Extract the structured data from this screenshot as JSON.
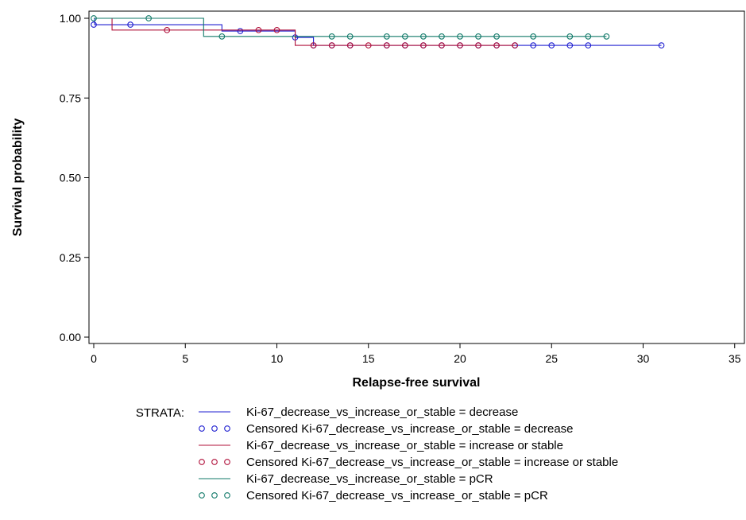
{
  "chart_data": {
    "type": "line",
    "subtype": "kaplan-meier step",
    "title": "",
    "xlabel": "Relapse-free survival",
    "ylabel": "Survival probability",
    "xlim": [
      0,
      35
    ],
    "ylim": [
      0,
      1
    ],
    "xticks": [
      0,
      5,
      10,
      15,
      20,
      25,
      30,
      35
    ],
    "yticks": [
      "0.00",
      "0.25",
      "0.50",
      "0.75",
      "1.00"
    ],
    "grid": false,
    "legend_position": "bottom",
    "legend_heading": "STRATA:",
    "series": [
      {
        "name": "Ki-67_decrease_vs_increase_or_stable = decrease",
        "censored_name": "Censored Ki-67_decrease_vs_increase_or_stable = decrease",
        "color": "#1f1fd0",
        "steps": [
          [
            0,
            1.0
          ],
          [
            0.05,
            0.98
          ],
          [
            7,
            0.96
          ],
          [
            11,
            0.94
          ],
          [
            12,
            0.915
          ],
          [
            31,
            0.915
          ]
        ],
        "censored": [
          [
            0,
            0.98
          ],
          [
            2,
            0.98
          ],
          [
            8,
            0.96
          ],
          [
            11,
            0.94
          ],
          [
            12,
            0.915
          ],
          [
            13,
            0.915
          ],
          [
            14,
            0.915
          ],
          [
            16,
            0.915
          ],
          [
            17,
            0.915
          ],
          [
            18,
            0.915
          ],
          [
            19,
            0.915
          ],
          [
            20,
            0.915
          ],
          [
            21,
            0.915
          ],
          [
            22,
            0.915
          ],
          [
            23,
            0.915
          ],
          [
            24,
            0.915
          ],
          [
            25,
            0.915
          ],
          [
            26,
            0.915
          ],
          [
            27,
            0.915
          ],
          [
            31,
            0.915
          ]
        ]
      },
      {
        "name": "Ki-67_decrease_vs_increase_or_stable = increase or stable",
        "censored_name": "Censored Ki-67_decrease_vs_increase_or_stable = increase or stable",
        "color": "#b0103a",
        "steps": [
          [
            0,
            1.0
          ],
          [
            1,
            0.963
          ],
          [
            11,
            0.915
          ],
          [
            23,
            0.915
          ]
        ],
        "censored": [
          [
            4,
            0.963
          ],
          [
            9,
            0.963
          ],
          [
            10,
            0.963
          ],
          [
            12,
            0.915
          ],
          [
            13,
            0.915
          ],
          [
            14,
            0.915
          ],
          [
            15,
            0.915
          ],
          [
            16,
            0.915
          ],
          [
            17,
            0.915
          ],
          [
            18,
            0.915
          ],
          [
            19,
            0.915
          ],
          [
            20,
            0.915
          ],
          [
            21,
            0.915
          ],
          [
            22,
            0.915
          ],
          [
            23,
            0.915
          ]
        ]
      },
      {
        "name": "Ki-67_decrease_vs_increase_or_stable = pCR",
        "censored_name": "Censored Ki-67_decrease_vs_increase_or_stable = pCR",
        "color": "#127a6a",
        "steps": [
          [
            0,
            1.0
          ],
          [
            6,
            0.943
          ],
          [
            28,
            0.943
          ]
        ],
        "censored": [
          [
            0,
            1.0
          ],
          [
            3,
            1.0
          ],
          [
            7,
            0.943
          ],
          [
            13,
            0.943
          ],
          [
            14,
            0.943
          ],
          [
            16,
            0.943
          ],
          [
            17,
            0.943
          ],
          [
            18,
            0.943
          ],
          [
            19,
            0.943
          ],
          [
            20,
            0.943
          ],
          [
            21,
            0.943
          ],
          [
            22,
            0.943
          ],
          [
            24,
            0.943
          ],
          [
            26,
            0.943
          ],
          [
            27,
            0.943
          ],
          [
            28,
            0.943
          ]
        ]
      }
    ]
  }
}
